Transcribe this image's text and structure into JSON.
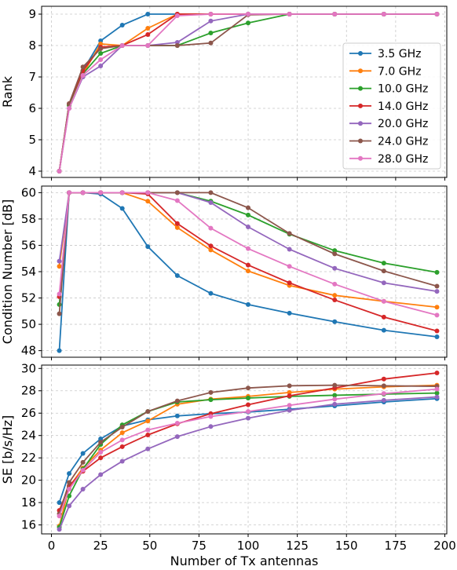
{
  "figure": {
    "xlabel": "Number of Tx antennas"
  },
  "series_meta": [
    {
      "name": "3.5 GHz",
      "color": "#1f77b4"
    },
    {
      "name": "7.0 GHz",
      "color": "#ff7f0e"
    },
    {
      "name": "10.0 GHz",
      "color": "#2ca02c"
    },
    {
      "name": "14.0 GHz",
      "color": "#d62728"
    },
    {
      "name": "20.0 GHz",
      "color": "#9467bd"
    },
    {
      "name": "24.0 GHz",
      "color": "#8c564b"
    },
    {
      "name": "28.0 GHz",
      "color": "#e377c2"
    }
  ],
  "chart_data": [
    {
      "type": "line",
      "ylabel": "Rank",
      "xlim": [
        -5,
        201
      ],
      "ylim": [
        3.8,
        9.25
      ],
      "xticks": [
        0,
        25,
        50,
        75,
        100,
        125,
        150,
        175,
        200
      ],
      "yticks": [
        4,
        5,
        6,
        7,
        8,
        9
      ],
      "grid": true,
      "legend": "right",
      "x": [
        4,
        9,
        16,
        25,
        36,
        49,
        64,
        81,
        100,
        121,
        144,
        169,
        196
      ],
      "series": [
        {
          "name": "3.5 GHz",
          "values": [
            4,
            6.1,
            7.2,
            8.15,
            8.65,
            9,
            9,
            9,
            9,
            9,
            9,
            9,
            9
          ]
        },
        {
          "name": "7.0 GHz",
          "values": [
            4,
            6.1,
            7.1,
            8.05,
            8,
            8.55,
            9,
            9,
            9,
            9,
            9,
            9,
            9
          ]
        },
        {
          "name": "10.0 GHz",
          "values": [
            4,
            6.1,
            7.1,
            7.75,
            8,
            8,
            8,
            8.4,
            8.72,
            9,
            9,
            9,
            9
          ]
        },
        {
          "name": "14.0 GHz",
          "values": [
            4,
            6.15,
            7.2,
            7.95,
            8,
            8.35,
            9,
            9,
            9,
            9,
            9,
            9,
            9
          ]
        },
        {
          "name": "20.0 GHz",
          "values": [
            4,
            6,
            7,
            7.35,
            8,
            8,
            8.1,
            8.78,
            9,
            9,
            9,
            9,
            9
          ]
        },
        {
          "name": "24.0 GHz",
          "values": [
            4,
            6.15,
            7.32,
            7.9,
            8,
            8,
            8,
            8.08,
            8.98,
            9,
            9,
            9,
            9
          ]
        },
        {
          "name": "28.0 GHz",
          "values": [
            4,
            6,
            7.05,
            7.55,
            8,
            8,
            8.95,
            9,
            9,
            9,
            9,
            9,
            9
          ]
        }
      ]
    },
    {
      "type": "line",
      "ylabel": "Condition Number [dB]",
      "xlim": [
        -5,
        201
      ],
      "ylim": [
        47.5,
        60.5
      ],
      "xticks": [
        0,
        25,
        50,
        75,
        100,
        125,
        150,
        175,
        200
      ],
      "yticks": [
        48,
        50,
        52,
        54,
        56,
        58,
        60
      ],
      "grid": true,
      "x": [
        4,
        9,
        16,
        25,
        36,
        49,
        64,
        81,
        100,
        121,
        144,
        169,
        196
      ],
      "series": [
        {
          "name": "3.5 GHz",
          "values": [
            48.0,
            60,
            60,
            59.9,
            58.8,
            55.9,
            53.7,
            52.35,
            51.5,
            50.85,
            50.2,
            49.55,
            49.05
          ]
        },
        {
          "name": "7.0 GHz",
          "values": [
            54.4,
            60,
            60,
            60,
            60,
            59.35,
            57.35,
            55.65,
            54.05,
            52.95,
            52.2,
            51.75,
            51.3
          ]
        },
        {
          "name": "10.0 GHz",
          "values": [
            51.5,
            60,
            60,
            60,
            60,
            60,
            60,
            59.35,
            58.3,
            56.85,
            55.6,
            54.65,
            53.95
          ]
        },
        {
          "name": "14.0 GHz",
          "values": [
            52.1,
            60,
            60,
            60,
            60,
            59.9,
            57.65,
            55.95,
            54.5,
            53.15,
            51.85,
            50.55,
            49.5
          ]
        },
        {
          "name": "20.0 GHz",
          "values": [
            54.8,
            60,
            60,
            60,
            60,
            60,
            60,
            59.25,
            57.4,
            55.7,
            54.25,
            53.15,
            52.5
          ]
        },
        {
          "name": "24.0 GHz",
          "values": [
            50.8,
            60,
            60,
            60,
            60,
            60,
            60,
            60,
            58.85,
            56.9,
            55.35,
            54.05,
            52.9
          ]
        },
        {
          "name": "28.0 GHz",
          "values": [
            52.3,
            60,
            60,
            60,
            60,
            60,
            59.4,
            57.3,
            55.75,
            54.4,
            53.05,
            51.75,
            50.7
          ]
        }
      ]
    },
    {
      "type": "line",
      "ylabel": "SE [b/s/Hz]",
      "xlabel": "Number of Tx antennas",
      "xlim": [
        -5,
        201
      ],
      "ylim": [
        15.2,
        30.3
      ],
      "xticks": [
        0,
        25,
        50,
        75,
        100,
        125,
        150,
        175,
        200
      ],
      "yticks": [
        16,
        18,
        20,
        22,
        24,
        26,
        28,
        30
      ],
      "grid": true,
      "x": [
        4,
        9,
        16,
        25,
        36,
        49,
        64,
        81,
        100,
        121,
        144,
        169,
        196
      ],
      "series": [
        {
          "name": "3.5 GHz",
          "values": [
            18.0,
            20.6,
            22.4,
            23.7,
            24.85,
            25.4,
            25.75,
            25.95,
            26.1,
            26.35,
            26.65,
            27.0,
            27.3
          ]
        },
        {
          "name": "7.0 GHz",
          "values": [
            15.9,
            19.4,
            21.1,
            22.7,
            24.25,
            25.3,
            26.8,
            27.25,
            27.5,
            27.85,
            28.15,
            28.35,
            28.5
          ]
        },
        {
          "name": "10.0 GHz",
          "values": [
            15.8,
            18.6,
            21.0,
            23.2,
            24.95,
            26.15,
            27.0,
            27.2,
            27.35,
            27.5,
            27.6,
            27.7,
            27.8
          ]
        },
        {
          "name": "14.0 GHz",
          "values": [
            17.3,
            19.5,
            20.8,
            22.0,
            23.0,
            24.05,
            25.05,
            25.95,
            26.75,
            27.55,
            28.25,
            29.05,
            29.6
          ]
        },
        {
          "name": "20.0 GHz",
          "values": [
            15.6,
            17.7,
            19.2,
            20.5,
            21.7,
            22.8,
            23.9,
            24.8,
            25.55,
            26.25,
            26.8,
            27.15,
            27.45
          ]
        },
        {
          "name": "24.0 GHz",
          "values": [
            17.0,
            19.8,
            21.6,
            23.4,
            24.75,
            26.15,
            27.1,
            27.85,
            28.25,
            28.45,
            28.5,
            28.45,
            28.4
          ]
        },
        {
          "name": "28.0 GHz",
          "values": [
            16.8,
            19.2,
            20.9,
            22.5,
            23.6,
            24.5,
            25.1,
            25.7,
            26.15,
            26.7,
            27.25,
            27.75,
            28.15
          ]
        }
      ]
    }
  ]
}
